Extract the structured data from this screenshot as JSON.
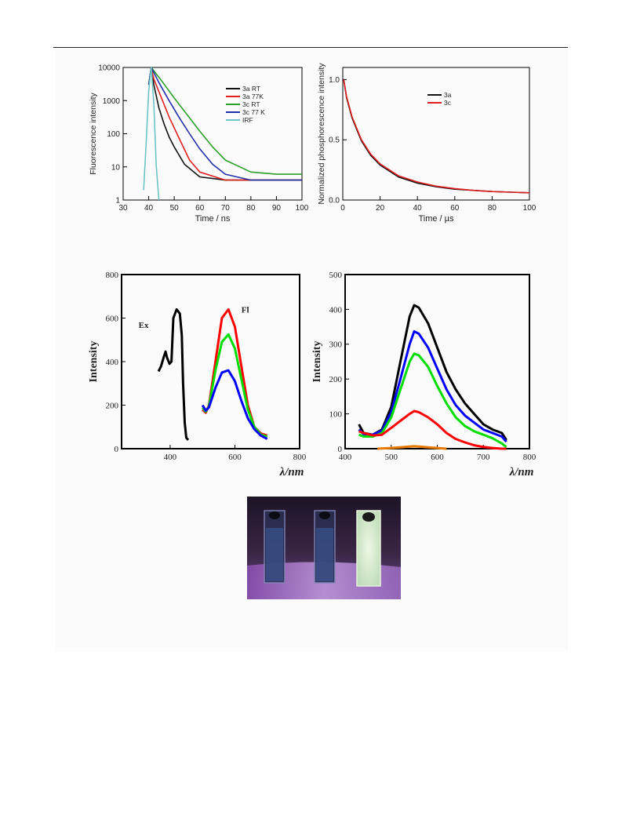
{
  "chart_data": [
    {
      "type": "line",
      "xlabel": "Time / ns",
      "ylabel": "Fluorescence intensity",
      "xlim": [
        30,
        100
      ],
      "ylim": [
        1,
        10000
      ],
      "yscale": "log",
      "xticks": [
        "30",
        "40",
        "50",
        "60",
        "70",
        "80",
        "90",
        "100"
      ],
      "yticks": [
        "1",
        "10",
        "100",
        "1000",
        "10000"
      ],
      "legend_position": "top-right",
      "series": [
        {
          "name": "3a RT",
          "color": "#111111",
          "x": [
            40,
            41,
            42,
            44,
            46,
            48,
            50,
            54,
            60,
            70,
            80,
            90,
            100
          ],
          "y": [
            3000,
            10000,
            3000,
            600,
            200,
            80,
            40,
            12,
            5,
            4,
            4,
            4,
            4
          ]
        },
        {
          "name": "3a 77K",
          "color": "#e02020",
          "x": [
            40,
            41,
            42,
            45,
            48,
            52,
            56,
            60,
            70,
            80,
            90,
            100
          ],
          "y": [
            3000,
            10000,
            4500,
            1200,
            320,
            70,
            16,
            7,
            4,
            4,
            4,
            4
          ]
        },
        {
          "name": "3c RT",
          "color": "#2aa02a",
          "x": [
            40,
            41,
            45,
            50,
            55,
            60,
            65,
            70,
            80,
            90,
            100
          ],
          "y": [
            3000,
            10000,
            4000,
            1200,
            380,
            120,
            40,
            16,
            7,
            6,
            6
          ]
        },
        {
          "name": "3c 77 K",
          "color": "#2030a8",
          "x": [
            40,
            41,
            44,
            48,
            52,
            56,
            60,
            65,
            70,
            80,
            90,
            100
          ],
          "y": [
            3000,
            10000,
            3500,
            1000,
            300,
            100,
            35,
            12,
            6,
            4,
            4,
            4
          ]
        },
        {
          "name": "IRF",
          "color": "#6ec4c4",
          "x": [
            38,
            39,
            40,
            41,
            42,
            43,
            44
          ],
          "y": [
            2,
            50,
            2000,
            10000,
            800,
            10,
            1
          ]
        }
      ]
    },
    {
      "type": "line",
      "xlabel": "Time / µs",
      "ylabel": "Normalized phosphorescence intensity",
      "xlim": [
        0,
        100
      ],
      "ylim": [
        0,
        1.1
      ],
      "xticks": [
        "0",
        "20",
        "40",
        "60",
        "80",
        "100"
      ],
      "yticks": [
        "0.0",
        "0.5",
        "1.0"
      ],
      "legend_position": "top-right",
      "series": [
        {
          "name": "3a",
          "color": "#111111",
          "x": [
            0.5,
            2,
            5,
            10,
            15,
            20,
            30,
            40,
            50,
            60,
            70,
            80,
            90,
            100
          ],
          "y": [
            1.0,
            0.85,
            0.68,
            0.49,
            0.37,
            0.29,
            0.19,
            0.14,
            0.11,
            0.09,
            0.08,
            0.07,
            0.065,
            0.06
          ]
        },
        {
          "name": "3c",
          "color": "#e02020",
          "x": [
            0.5,
            2,
            5,
            10,
            15,
            20,
            30,
            40,
            50,
            60,
            70,
            80,
            90,
            100
          ],
          "y": [
            1.0,
            0.86,
            0.69,
            0.5,
            0.38,
            0.3,
            0.2,
            0.15,
            0.115,
            0.095,
            0.08,
            0.07,
            0.065,
            0.06
          ]
        }
      ]
    },
    {
      "type": "line",
      "xlabel": "λ/nm",
      "ylabel": "Intensity",
      "xlim": [
        250,
        800
      ],
      "ylim": [
        0,
        800
      ],
      "xticks": [
        "400",
        "600",
        "800"
      ],
      "yticks": [
        "0",
        "200",
        "400",
        "600",
        "800"
      ],
      "annotations": [
        "Ex",
        "Fl"
      ],
      "series": [
        {
          "color": "#000000",
          "x": [
            364,
            372,
            380,
            386,
            390,
            398,
            404,
            410,
            420,
            430,
            436,
            440,
            445,
            450,
            456
          ],
          "y": [
            355,
            380,
            420,
            446,
            420,
            390,
            400,
            600,
            640,
            620,
            520,
            300,
            120,
            50,
            40
          ]
        },
        {
          "color": "#ff0000",
          "x": [
            500,
            510,
            520,
            540,
            560,
            580,
            600,
            620,
            640,
            660,
            680,
            700
          ],
          "y": [
            180,
            165,
            200,
            400,
            600,
            640,
            560,
            380,
            200,
            100,
            70,
            60
          ]
        },
        {
          "color": "#00dd00",
          "x": [
            500,
            510,
            520,
            540,
            560,
            580,
            600,
            620,
            640,
            660,
            680,
            700
          ],
          "y": [
            190,
            170,
            195,
            360,
            490,
            525,
            460,
            320,
            180,
            100,
            65,
            55
          ]
        },
        {
          "color": "#0000ff",
          "x": [
            500,
            510,
            520,
            540,
            560,
            580,
            600,
            620,
            640,
            660,
            680,
            700
          ],
          "y": [
            200,
            175,
            190,
            280,
            350,
            360,
            310,
            220,
            140,
            90,
            60,
            45
          ]
        }
      ]
    },
    {
      "type": "line",
      "xlabel": "λ/nm",
      "ylabel": "Intensity",
      "xlim": [
        400,
        800
      ],
      "ylim": [
        0,
        500
      ],
      "xticks": [
        "400",
        "500",
        "600",
        "700",
        "800"
      ],
      "yticks": [
        "0",
        "100",
        "200",
        "300",
        "400",
        "500"
      ],
      "series": [
        {
          "color": "#000000",
          "x": [
            430,
            440,
            460,
            480,
            500,
            520,
            540,
            550,
            560,
            580,
            600,
            620,
            640,
            660,
            680,
            700,
            720,
            740,
            750
          ],
          "y": [
            70,
            45,
            40,
            55,
            120,
            250,
            380,
            412,
            405,
            360,
            290,
            220,
            170,
            130,
            100,
            70,
            55,
            45,
            25
          ]
        },
        {
          "color": "#0000ff",
          "x": [
            430,
            440,
            460,
            480,
            500,
            520,
            540,
            550,
            560,
            580,
            600,
            620,
            640,
            660,
            680,
            700,
            720,
            740,
            750
          ],
          "y": [
            55,
            42,
            40,
            52,
            105,
            200,
            300,
            337,
            330,
            290,
            230,
            170,
            125,
            95,
            75,
            55,
            45,
            35,
            20
          ]
        },
        {
          "color": "#00dd00",
          "x": [
            430,
            440,
            460,
            480,
            500,
            520,
            540,
            550,
            560,
            580,
            600,
            620,
            640,
            660,
            680,
            700,
            720,
            740,
            750
          ],
          "y": [
            40,
            35,
            35,
            45,
            90,
            170,
            250,
            273,
            268,
            235,
            180,
            130,
            90,
            65,
            50,
            40,
            30,
            15,
            5
          ]
        },
        {
          "color": "#ff0000",
          "x": [
            430,
            440,
            460,
            480,
            500,
            520,
            540,
            550,
            560,
            580,
            600,
            620,
            640,
            660,
            680,
            700,
            720,
            740,
            750
          ],
          "y": [
            50,
            45,
            38,
            40,
            60,
            80,
            100,
            108,
            105,
            90,
            70,
            45,
            28,
            18,
            10,
            5,
            2,
            0,
            0
          ]
        },
        {
          "color": "#e87a00",
          "x": [
            470,
            500,
            520,
            540,
            550,
            560,
            580,
            600,
            620
          ],
          "y": [
            0,
            2,
            4,
            6,
            7,
            6,
            4,
            2,
            0
          ]
        }
      ]
    }
  ],
  "photo": {
    "description_free": true,
    "glow_color": "#cfe8c8",
    "background_color": "#35233f"
  }
}
